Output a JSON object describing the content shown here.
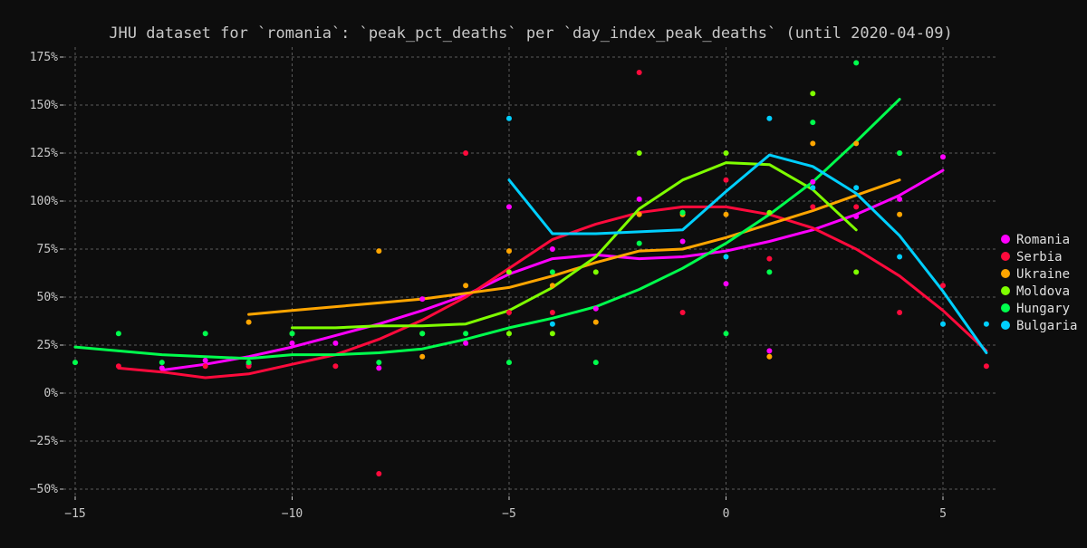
{
  "chart_data": {
    "type": "line",
    "title": "JHU dataset for `romania`: `peak_pct_deaths` per `day_index_peak_deaths` (until 2020-04-09)",
    "xlabel": "",
    "ylabel": "",
    "xlim": [
      -15.0,
      6.5
    ],
    "ylim": [
      -52,
      182
    ],
    "x_ticks": [
      -15,
      -10,
      -5,
      0,
      5
    ],
    "x_tick_labels": [
      "−15",
      "−10",
      "−5",
      "0",
      "5"
    ],
    "y_ticks": [
      -50,
      -25,
      0,
      25,
      50,
      75,
      100,
      125,
      150,
      175
    ],
    "y_tick_labels": [
      "−50%",
      "−25%",
      "0%",
      "25%",
      "50%",
      "75%",
      "100%",
      "125%",
      "150%",
      "175%"
    ],
    "grid": true,
    "legend_position": "right",
    "background": "#0d0d0d",
    "series": [
      {
        "name": "Romania",
        "color": "#ff00ff",
        "scatter": [
          [
            -13,
            13
          ],
          [
            -12,
            17
          ],
          [
            -11,
            15
          ],
          [
            -10,
            26
          ],
          [
            -9,
            26
          ],
          [
            -8,
            13
          ],
          [
            -7,
            49
          ],
          [
            -6,
            26
          ],
          [
            -5,
            97
          ],
          [
            -4,
            75
          ],
          [
            -3,
            44
          ],
          [
            -2,
            101
          ],
          [
            -1,
            79
          ],
          [
            0,
            57
          ],
          [
            1,
            22
          ],
          [
            2,
            110
          ],
          [
            3,
            92
          ],
          [
            4,
            101
          ],
          [
            5,
            123
          ]
        ],
        "line": [
          [
            -13,
            12
          ],
          [
            -12,
            15
          ],
          [
            -11,
            19
          ],
          [
            -10,
            24
          ],
          [
            -9,
            30
          ],
          [
            -8,
            36
          ],
          [
            -7,
            43
          ],
          [
            -6,
            51
          ],
          [
            -5,
            62
          ],
          [
            -4,
            70
          ],
          [
            -3,
            72
          ],
          [
            -2,
            70
          ],
          [
            -1,
            71
          ],
          [
            0,
            74
          ],
          [
            1,
            79
          ],
          [
            2,
            85
          ],
          [
            3,
            93
          ],
          [
            4,
            103
          ],
          [
            5,
            116
          ]
        ]
      },
      {
        "name": "Serbia",
        "color": "#ff0a3c",
        "scatter": [
          [
            -14,
            14
          ],
          [
            -12,
            14
          ],
          [
            -11,
            14
          ],
          [
            -9,
            14
          ],
          [
            -8,
            -42
          ],
          [
            -6,
            125
          ],
          [
            -5,
            42
          ],
          [
            -4,
            42
          ],
          [
            -2,
            167
          ],
          [
            -1,
            42
          ],
          [
            0,
            111
          ],
          [
            1,
            70
          ],
          [
            2,
            97
          ],
          [
            3,
            97
          ],
          [
            4,
            42
          ],
          [
            5,
            56
          ],
          [
            6,
            14
          ]
        ],
        "line": [
          [
            -14,
            13
          ],
          [
            -13,
            11
          ],
          [
            -12,
            8
          ],
          [
            -11,
            10
          ],
          [
            -10,
            15
          ],
          [
            -9,
            20
          ],
          [
            -8,
            28
          ],
          [
            -7,
            38
          ],
          [
            -6,
            50
          ],
          [
            -5,
            65
          ],
          [
            -4,
            80
          ],
          [
            -3,
            88
          ],
          [
            -2,
            94
          ],
          [
            -1,
            97
          ],
          [
            0,
            97
          ],
          [
            1,
            93
          ],
          [
            2,
            86
          ],
          [
            3,
            75
          ],
          [
            4,
            61
          ],
          [
            5,
            43
          ],
          [
            6,
            22
          ]
        ]
      },
      {
        "name": "Ukraine",
        "color": "#ffa500",
        "scatter": [
          [
            -11,
            37
          ],
          [
            -8,
            74
          ],
          [
            -7,
            19
          ],
          [
            -6,
            56
          ],
          [
            -5,
            74
          ],
          [
            -4,
            56
          ],
          [
            -3,
            37
          ],
          [
            -2,
            93
          ],
          [
            -1,
            93
          ],
          [
            0,
            93
          ],
          [
            1,
            19
          ],
          [
            2,
            130
          ],
          [
            3,
            130
          ],
          [
            4,
            93
          ]
        ],
        "line": [
          [
            -11,
            41
          ],
          [
            -10,
            43
          ],
          [
            -9,
            45
          ],
          [
            -8,
            47
          ],
          [
            -7,
            49
          ],
          [
            -6,
            52
          ],
          [
            -5,
            55
          ],
          [
            -4,
            61
          ],
          [
            -3,
            68
          ],
          [
            -2,
            74
          ],
          [
            -1,
            75
          ],
          [
            0,
            81
          ],
          [
            1,
            88
          ],
          [
            2,
            95
          ],
          [
            3,
            103
          ],
          [
            4,
            111
          ]
        ]
      },
      {
        "name": "Moldova",
        "color": "#7fff00",
        "scatter": [
          [
            -10,
            31
          ],
          [
            -7,
            31
          ],
          [
            -5,
            31
          ],
          [
            -5,
            63
          ],
          [
            -4,
            31
          ],
          [
            -3,
            63
          ],
          [
            -2,
            125
          ],
          [
            -1,
            94
          ],
          [
            0,
            125
          ],
          [
            1,
            94
          ],
          [
            2,
            156
          ],
          [
            3,
            63
          ],
          [
            4,
            125
          ]
        ],
        "line": [
          [
            -10,
            34
          ],
          [
            -9,
            34
          ],
          [
            -8,
            35
          ],
          [
            -7,
            35
          ],
          [
            -6,
            36
          ],
          [
            -5,
            43
          ],
          [
            -4,
            55
          ],
          [
            -3,
            71
          ],
          [
            -2,
            96
          ],
          [
            -1,
            111
          ],
          [
            0,
            120
          ],
          [
            1,
            119
          ],
          [
            2,
            106
          ],
          [
            3,
            85
          ]
        ]
      },
      {
        "name": "Hungary",
        "color": "#00ff4d",
        "scatter": [
          [
            -15,
            16
          ],
          [
            -14,
            31
          ],
          [
            -13,
            16
          ],
          [
            -12,
            31
          ],
          [
            -11,
            16
          ],
          [
            -10,
            31
          ],
          [
            -8,
            16
          ],
          [
            -7,
            31
          ],
          [
            -6,
            31
          ],
          [
            -5,
            16
          ],
          [
            -4,
            63
          ],
          [
            -3,
            16
          ],
          [
            -2,
            78
          ],
          [
            -1,
            94
          ],
          [
            0,
            31
          ],
          [
            1,
            63
          ],
          [
            2,
            141
          ],
          [
            3,
            172
          ],
          [
            4,
            125
          ]
        ],
        "line": [
          [
            -15,
            24
          ],
          [
            -14,
            22
          ],
          [
            -13,
            20
          ],
          [
            -12,
            19
          ],
          [
            -11,
            18
          ],
          [
            -10,
            20
          ],
          [
            -9,
            20
          ],
          [
            -8,
            21
          ],
          [
            -7,
            23
          ],
          [
            -6,
            28
          ],
          [
            -5,
            34
          ],
          [
            -4,
            39
          ],
          [
            -3,
            45
          ],
          [
            -2,
            54
          ],
          [
            -1,
            65
          ],
          [
            0,
            78
          ],
          [
            1,
            93
          ],
          [
            2,
            110
          ],
          [
            3,
            131
          ],
          [
            4,
            153
          ]
        ]
      },
      {
        "name": "Bulgaria",
        "color": "#00cfff",
        "scatter": [
          [
            -5,
            143
          ],
          [
            -4,
            36
          ],
          [
            0,
            71
          ],
          [
            1,
            143
          ],
          [
            2,
            107
          ],
          [
            3,
            107
          ],
          [
            4,
            71
          ],
          [
            5,
            36
          ],
          [
            6,
            36
          ]
        ],
        "line": [
          [
            -5,
            111
          ],
          [
            -4,
            83
          ],
          [
            -3,
            83
          ],
          [
            -2,
            84
          ],
          [
            -1,
            85
          ],
          [
            0,
            105
          ],
          [
            1,
            124
          ],
          [
            2,
            118
          ],
          [
            3,
            104
          ],
          [
            4,
            82
          ],
          [
            5,
            53
          ],
          [
            6,
            21
          ]
        ]
      }
    ]
  }
}
